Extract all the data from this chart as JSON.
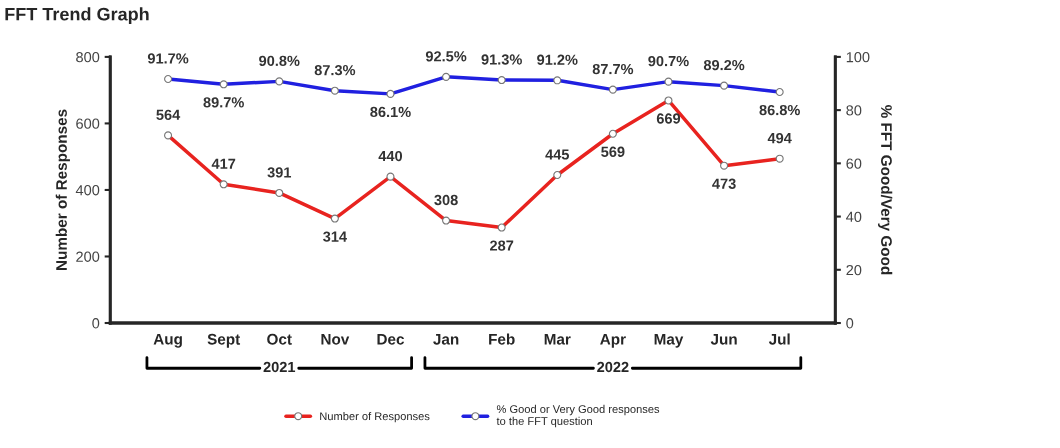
{
  "chart_data": {
    "type": "line",
    "title": "FFT Trend Graph",
    "categories": [
      "Aug",
      "Sept",
      "Oct",
      "Nov",
      "Dec",
      "Jan",
      "Feb",
      "Mar",
      "Apr",
      "May",
      "Jun",
      "Jul"
    ],
    "ylabel": "Number of Responses",
    "y2label": "% FFT Good/Very Good",
    "ylim": [
      0,
      800
    ],
    "yticks": [
      0,
      200,
      400,
      600,
      800
    ],
    "y2lim": [
      0,
      100
    ],
    "y2ticks": [
      0,
      20,
      40,
      60,
      80,
      100
    ],
    "series": [
      {
        "name": "Number of Responses",
        "color": "#e8231f",
        "values": [
          564,
          417,
          391,
          314,
          440,
          308,
          287,
          445,
          569,
          669,
          473,
          494
        ],
        "value_labels": [
          "564",
          "417",
          "391",
          "314",
          "440",
          "308",
          "287",
          "445",
          "569",
          "669",
          "473",
          "494"
        ]
      },
      {
        "name": "% Good or Very Good responses\nto the FFT question",
        "color": "#2020e0",
        "axis": "y2",
        "values": [
          91.7,
          89.7,
          90.8,
          87.3,
          86.1,
          92.5,
          91.3,
          91.2,
          87.7,
          90.7,
          89.2,
          86.8
        ],
        "value_labels": [
          "91.7%",
          "89.7%",
          "90.8%",
          "87.3%",
          "86.1%",
          "92.5%",
          "91.3%",
          "91.2%",
          "87.7%",
          "90.7%",
          "89.2%",
          "86.8%"
        ]
      }
    ],
    "annotations": [
      "2021",
      "2022"
    ],
    "marker": "circle",
    "line_style": "solid",
    "grid": false,
    "legend": "bottom"
  }
}
